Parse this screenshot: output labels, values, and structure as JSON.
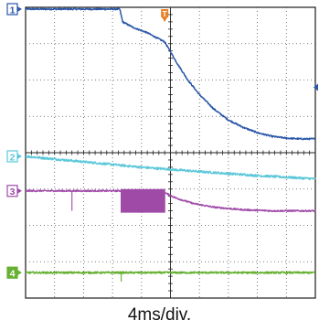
{
  "chart_data": {
    "type": "line",
    "title": "",
    "xlabel": "4ms/div.",
    "ylabel": "",
    "x_unit": "div",
    "y_unit": "div",
    "x_divisions": 10,
    "y_divisions": 8,
    "xlim": [
      0,
      10
    ],
    "ylim": [
      -4,
      4
    ],
    "grid": true,
    "trigger_marker": {
      "label": "T",
      "x": 4.8,
      "color": "#e8822a"
    },
    "trigger_level_marker": {
      "side": "right",
      "y": 1.8,
      "color": "#2a57a8"
    },
    "series": [
      {
        "name": "1",
        "color": "#2a57a8",
        "noise": 0.02,
        "points": [
          [
            0,
            3.95
          ],
          [
            1,
            3.95
          ],
          [
            2,
            3.95
          ],
          [
            3.25,
            3.95
          ],
          [
            3.35,
            3.6
          ],
          [
            3.7,
            3.45
          ],
          [
            4.2,
            3.3
          ],
          [
            4.55,
            3.15
          ],
          [
            4.8,
            3.05
          ],
          [
            5.2,
            2.5
          ],
          [
            5.6,
            2.0
          ],
          [
            6.0,
            1.6
          ],
          [
            6.5,
            1.2
          ],
          [
            7.0,
            0.9
          ],
          [
            7.5,
            0.7
          ],
          [
            8.0,
            0.55
          ],
          [
            8.5,
            0.45
          ],
          [
            9.0,
            0.4
          ],
          [
            9.5,
            0.38
          ],
          [
            10,
            0.38
          ]
        ]
      },
      {
        "name": "2",
        "color": "#5bc8d9",
        "noise": 0.03,
        "points": [
          [
            0,
            -0.1
          ],
          [
            2,
            -0.25
          ],
          [
            4,
            -0.4
          ],
          [
            6,
            -0.52
          ],
          [
            8,
            -0.63
          ],
          [
            10,
            -0.72
          ]
        ]
      },
      {
        "name": "3",
        "color": "#a04aa8",
        "noise": 0.02,
        "burst": {
          "x0": 3.3,
          "x1": 4.8,
          "low": -1.65,
          "high": -1.0
        },
        "spike": {
          "x": 1.6,
          "y": -1.6
        },
        "points": [
          [
            0,
            -1.05
          ],
          [
            1,
            -1.05
          ],
          [
            2,
            -1.05
          ],
          [
            3.3,
            -1.05
          ],
          [
            4.8,
            -1.1
          ],
          [
            5.2,
            -1.25
          ],
          [
            5.8,
            -1.4
          ],
          [
            6.5,
            -1.5
          ],
          [
            7.5,
            -1.57
          ],
          [
            8.5,
            -1.6
          ],
          [
            10,
            -1.6
          ]
        ]
      },
      {
        "name": "4",
        "color": "#66b032",
        "noise": 0.025,
        "spike": {
          "x": 3.3,
          "y": -3.55
        },
        "points": [
          [
            0,
            -3.3
          ],
          [
            10,
            -3.3
          ]
        ]
      }
    ]
  }
}
